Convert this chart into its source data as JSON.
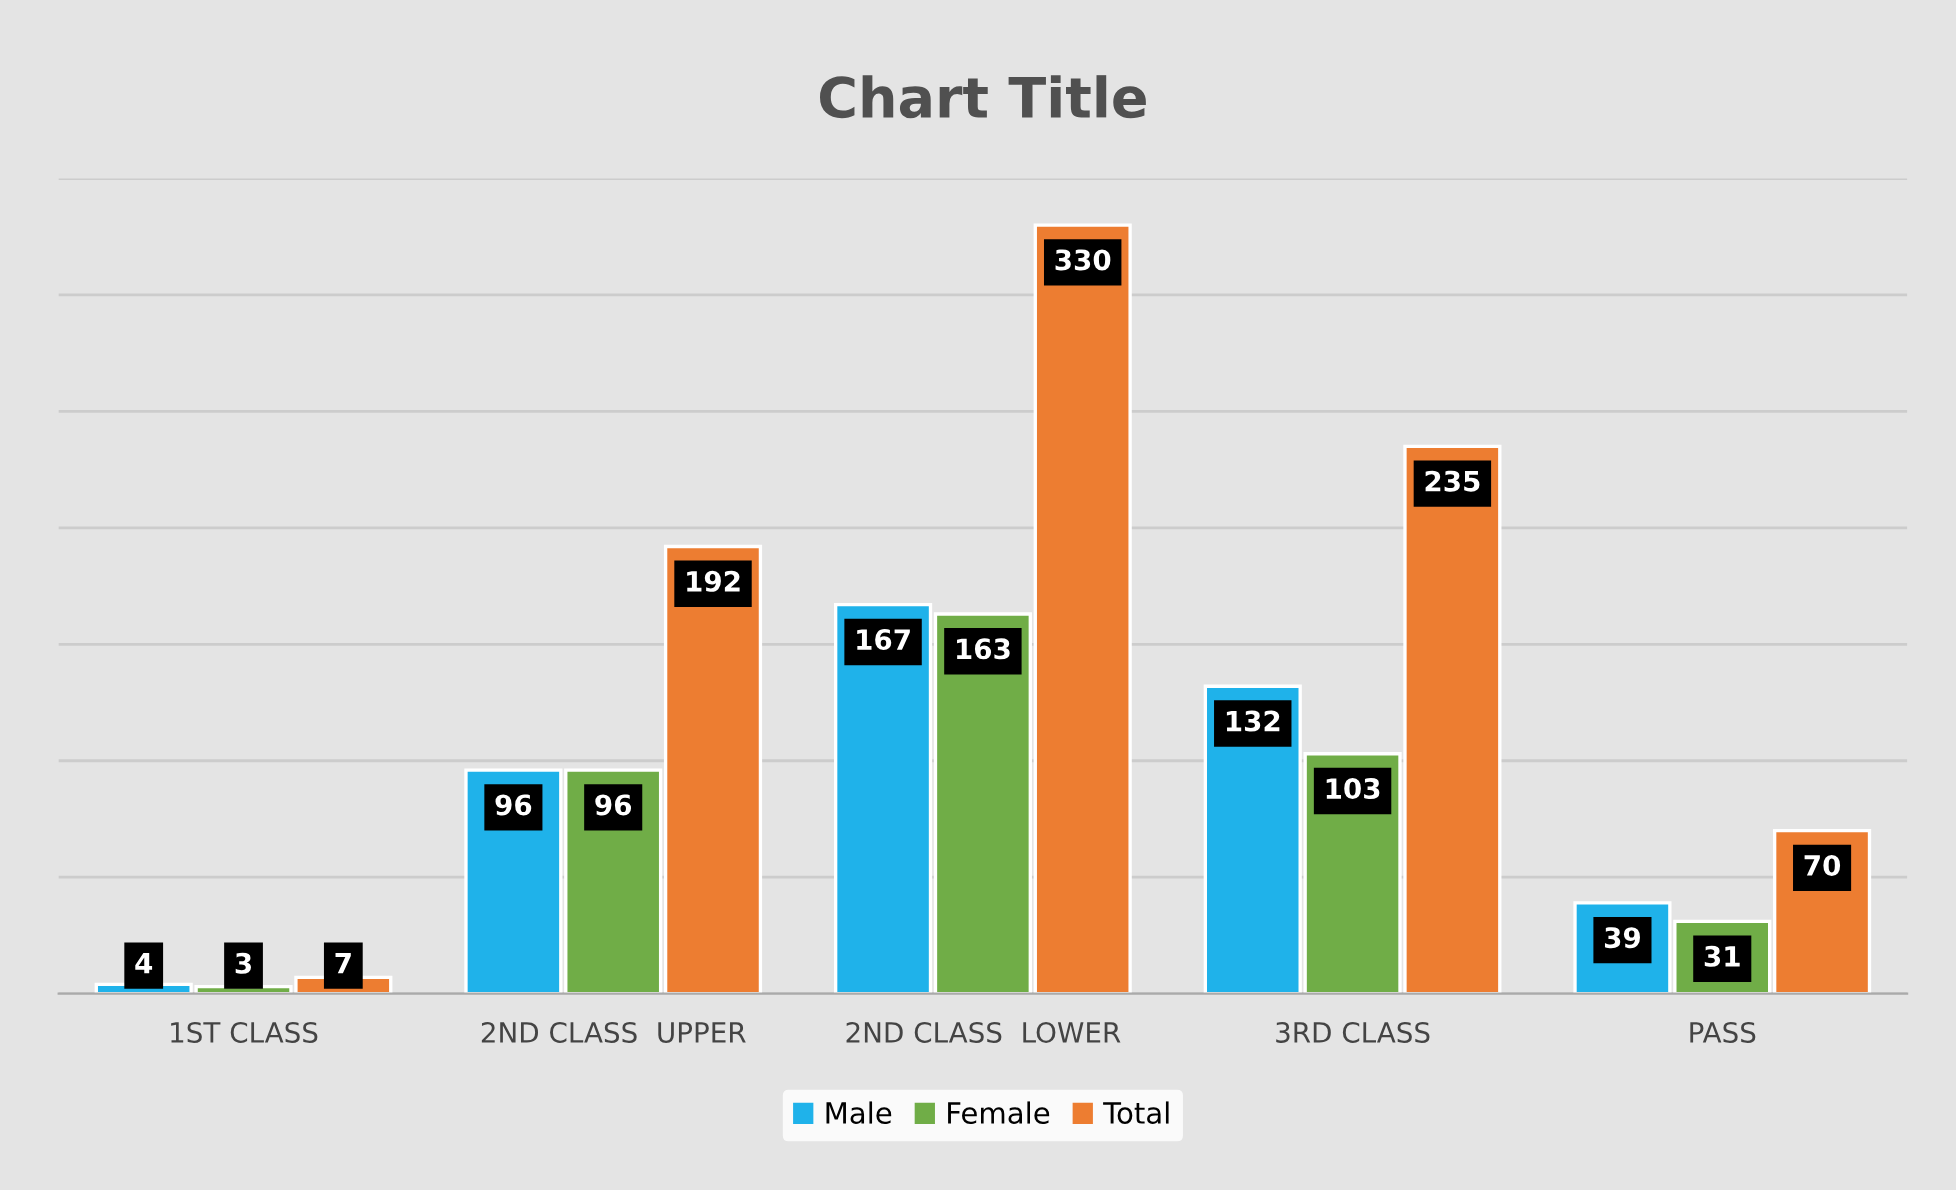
{
  "chart_data": {
    "type": "bar",
    "title": "Chart Title",
    "categories": [
      "1ST CLASS",
      "2ND CLASS  UPPER",
      "2ND CLASS  LOWER",
      "3RD CLASS",
      "PASS"
    ],
    "series": [
      {
        "name": "Male",
        "color": "#1fb2ea",
        "values": [
          4,
          96,
          167,
          132,
          39
        ]
      },
      {
        "name": "Female",
        "color": "#70ad47",
        "values": [
          3,
          96,
          163,
          103,
          31
        ]
      },
      {
        "name": "Total",
        "color": "#ed7d31",
        "values": [
          7,
          192,
          330,
          235,
          70
        ]
      }
    ],
    "ylim": [
      0,
      350
    ],
    "yticks": [
      {
        "value": 0,
        "label": null
      },
      {
        "value": 50,
        "label": null
      },
      {
        "value": 100,
        "label": null
      },
      {
        "value": 150,
        "label": null
      },
      {
        "value": 200,
        "label": null
      },
      {
        "value": 250,
        "label": null
      },
      {
        "value": 300,
        "label": null
      },
      {
        "value": 350,
        "label": null
      }
    ],
    "tick_labels": "x",
    "grid": "y",
    "legend": "bottom",
    "data_labels": true
  }
}
